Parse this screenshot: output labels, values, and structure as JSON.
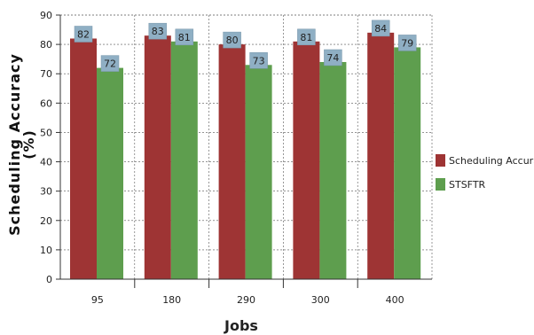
{
  "chart_data": {
    "type": "bar",
    "categories": [
      "95",
      "180",
      "290",
      "300",
      "400"
    ],
    "series": [
      {
        "name": "Scheduling Accuracy",
        "color": "#9E3434",
        "values": [
          82,
          83,
          80,
          81,
          84
        ]
      },
      {
        "name": "STSFTR",
        "color": "#5E9E4E",
        "values": [
          72,
          81,
          73,
          74,
          79
        ]
      }
    ],
    "xlabel": "Jobs",
    "ylabel_line1": "Scheduling Accuracy",
    "ylabel_line2": "(%)",
    "ylim": [
      0,
      90
    ],
    "yticks": [
      0,
      10,
      20,
      30,
      40,
      50,
      60,
      70,
      80,
      90
    ],
    "grid": true,
    "legend_position": "right",
    "label_box_color": "#8FAFC4"
  }
}
